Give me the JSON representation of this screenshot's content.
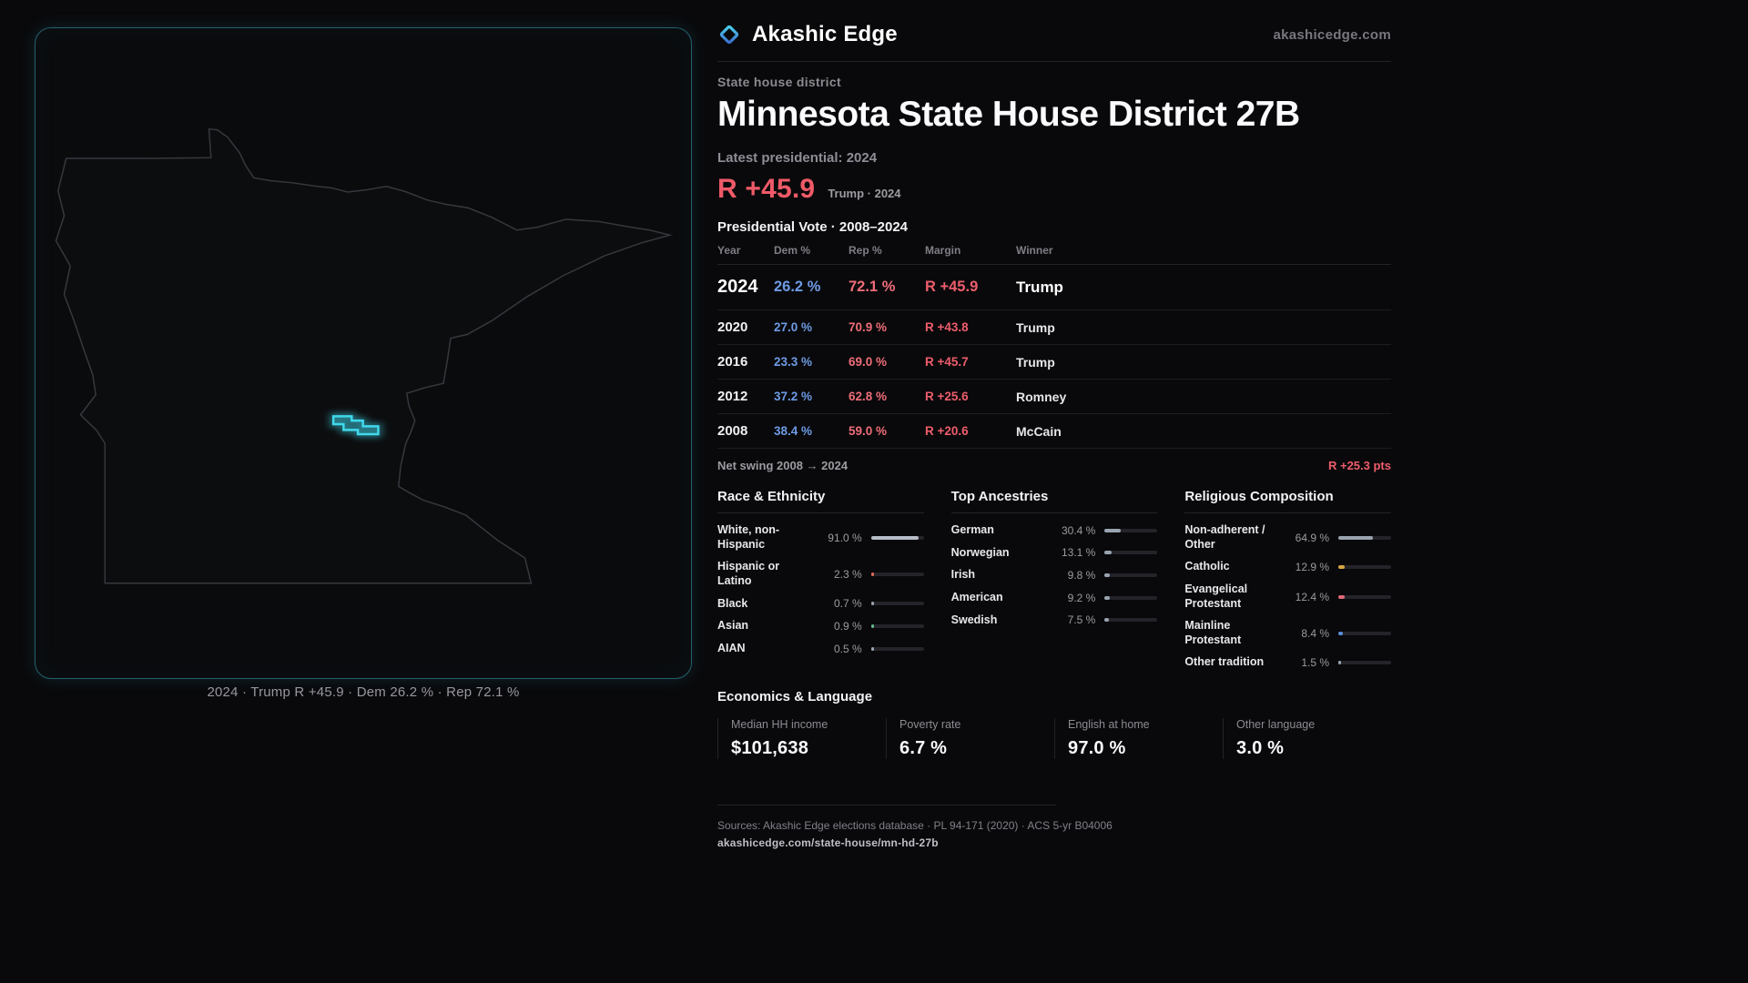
{
  "brand": {
    "name": "Akashic Edge",
    "domain": "akashicedge.com",
    "logo_icon": "diamond-icon"
  },
  "colors": {
    "dem_blue": "#6d9be4",
    "rep_red": "#ee6d78",
    "accent_red": "#ee5d6c",
    "district_cyan": "#3fd9ec"
  },
  "map": {
    "caption": "2024 · Trump R +45.9 · Dem 26.2 % · Rep 72.1 %"
  },
  "page": {
    "kicker": "State house district",
    "title": "Minnesota State House District 27B",
    "latest_label": "Latest presidential: 2024",
    "headline_margin": "R +45.9",
    "headline_sub": "Trump · 2024"
  },
  "vote_table": {
    "title": "Presidential Vote · 2008–2024",
    "columns": [
      "Year",
      "Dem %",
      "Rep %",
      "Margin",
      "Winner"
    ],
    "rows": [
      {
        "year": "2024",
        "dem": "26.2 %",
        "rep": "72.1 %",
        "margin": "R +45.9",
        "winner": "Trump"
      },
      {
        "year": "2020",
        "dem": "27.0 %",
        "rep": "70.9 %",
        "margin": "R +43.8",
        "winner": "Trump"
      },
      {
        "year": "2016",
        "dem": "23.3 %",
        "rep": "69.0 %",
        "margin": "R +45.7",
        "winner": "Trump"
      },
      {
        "year": "2012",
        "dem": "37.2 %",
        "rep": "62.8 %",
        "margin": "R +25.6",
        "winner": "Romney"
      },
      {
        "year": "2008",
        "dem": "38.4 %",
        "rep": "59.0 %",
        "margin": "R +20.6",
        "winner": "McCain"
      }
    ],
    "net_swing_label": "Net swing 2008 → 2024",
    "net_swing_value": "R +25.3 pts"
  },
  "demographics": {
    "race": {
      "title": "Race & Ethnicity",
      "items": [
        {
          "label": "White, non-Hispanic",
          "value": "91.0 %",
          "pct": 91.0,
          "color": "#b7bdc8"
        },
        {
          "label": "Hispanic or Latino",
          "value": "2.3 %",
          "pct": 2.3,
          "color": "#e06a55"
        },
        {
          "label": "Black",
          "value": "0.7 %",
          "pct": 0.7,
          "color": "#9aa3b0"
        },
        {
          "label": "Asian",
          "value": "0.9 %",
          "pct": 0.9,
          "color": "#62b98a"
        },
        {
          "label": "AIAN",
          "value": "0.5 %",
          "pct": 0.5,
          "color": "#9aa3b0"
        }
      ]
    },
    "ancestries": {
      "title": "Top Ancestries",
      "items": [
        {
          "label": "German",
          "value": "30.4 %",
          "pct": 30.4,
          "color": "#9aa3b0"
        },
        {
          "label": "Norwegian",
          "value": "13.1 %",
          "pct": 13.1,
          "color": "#9aa3b0"
        },
        {
          "label": "Irish",
          "value": "9.8 %",
          "pct": 9.8,
          "color": "#9aa3b0"
        },
        {
          "label": "American",
          "value": "9.2 %",
          "pct": 9.2,
          "color": "#9aa3b0"
        },
        {
          "label": "Swedish",
          "value": "7.5 %",
          "pct": 7.5,
          "color": "#9aa3b0"
        }
      ]
    },
    "religion": {
      "title": "Religious Composition",
      "items": [
        {
          "label": "Non-adherent / Other",
          "value": "64.9 %",
          "pct": 64.9,
          "color": "#9aa3b0"
        },
        {
          "label": "Catholic",
          "value": "12.9 %",
          "pct": 12.9,
          "color": "#d9a544"
        },
        {
          "label": "Evangelical Protestant",
          "value": "12.4 %",
          "pct": 12.4,
          "color": "#e0697a"
        },
        {
          "label": "Mainline Protestant",
          "value": "8.4 %",
          "pct": 8.4,
          "color": "#5b8dd9"
        },
        {
          "label": "Other tradition",
          "value": "1.5 %",
          "pct": 1.5,
          "color": "#9aa3b0"
        }
      ]
    }
  },
  "economics": {
    "title": "Economics & Language",
    "stats": [
      {
        "label": "Median HH income",
        "value": "$101,638"
      },
      {
        "label": "Poverty rate",
        "value": "6.7 %"
      },
      {
        "label": "English at home",
        "value": "97.0 %"
      },
      {
        "label": "Other language",
        "value": "3.0 %"
      }
    ]
  },
  "footer": {
    "sources": "Sources: Akashic Edge elections database · PL 94-171 (2020) · ACS 5-yr B04006",
    "permalink": "akashicedge.com/state-house/mn-hd-27b"
  }
}
